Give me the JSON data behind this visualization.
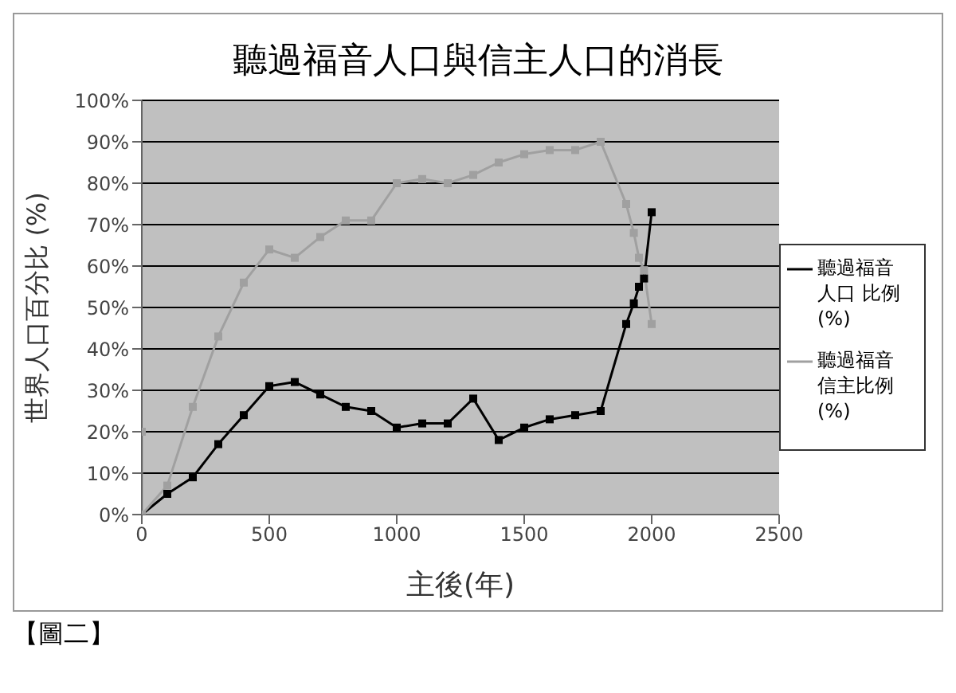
{
  "chart_data": {
    "type": "line",
    "title": "聽過福音人口與信主人口的消長",
    "xlabel": "主後(年)",
    "ylabel": "世界人口百分比 (%)",
    "series": [
      {
        "name": "聽過福音人口 比例(%)",
        "color": "#000000",
        "x": [
          0,
          100,
          200,
          300,
          400,
          500,
          600,
          700,
          800,
          900,
          1000,
          1100,
          1200,
          1300,
          1400,
          1500,
          1600,
          1700,
          1800,
          1900,
          1930,
          1950,
          1970,
          2000
        ],
        "values": [
          0,
          5,
          9,
          17,
          24,
          31,
          32,
          29,
          26,
          25,
          21,
          22,
          22,
          28,
          18,
          21,
          23,
          24,
          25,
          46,
          51,
          55,
          57,
          73
        ]
      },
      {
        "name": "聽過福音信主比例(%)",
        "color": "#a0a0a0",
        "x": [
          0,
          0,
          100,
          200,
          300,
          400,
          500,
          600,
          700,
          800,
          900,
          1000,
          1100,
          1200,
          1300,
          1400,
          1500,
          1600,
          1700,
          1800,
          1900,
          1930,
          1950,
          1970,
          2000
        ],
        "values": [
          20,
          0,
          7,
          26,
          43,
          56,
          64,
          62,
          67,
          71,
          71,
          80,
          81,
          80,
          82,
          85,
          87,
          88,
          88,
          90,
          75,
          68,
          62,
          59,
          46
        ]
      }
    ],
    "xlim": [
      0,
      2500
    ],
    "xticks": [
      0,
      500,
      1000,
      1500,
      2000,
      2500
    ],
    "ylim": [
      0,
      100
    ],
    "yticks": [
      {
        "value": 0,
        "label": "0%"
      },
      {
        "value": 10,
        "label": "10%"
      },
      {
        "value": 20,
        "label": "20%"
      },
      {
        "value": 30,
        "label": "30%"
      },
      {
        "value": 40,
        "label": "40%"
      },
      {
        "value": 50,
        "label": "50%"
      },
      {
        "value": 60,
        "label": "60%"
      },
      {
        "value": 70,
        "label": "70%"
      },
      {
        "value": 80,
        "label": "80%"
      },
      {
        "value": 90,
        "label": "90%"
      },
      {
        "value": 100,
        "label": "100%"
      }
    ],
    "grid": "y",
    "legend": "right",
    "marker": "square",
    "line_style": "solid",
    "annotations": [
      "【圖二】"
    ]
  }
}
